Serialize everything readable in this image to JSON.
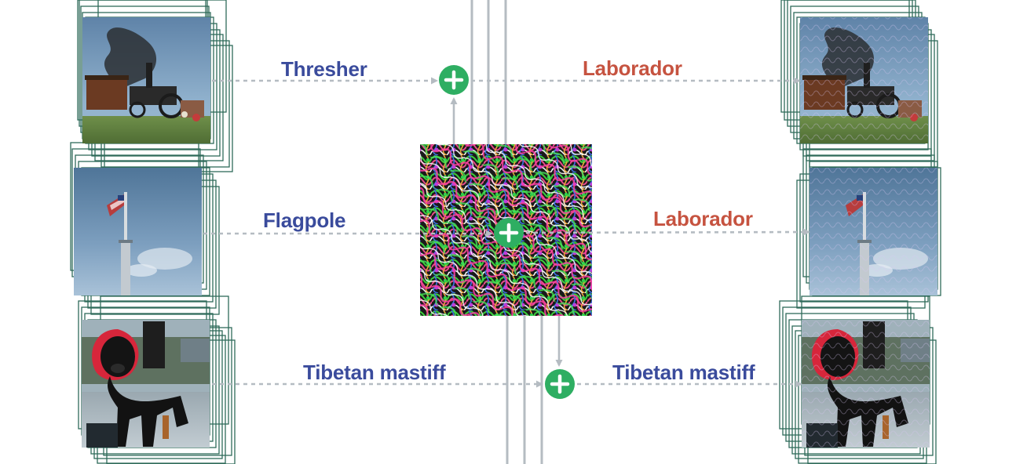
{
  "diagram": {
    "colors": {
      "frame": "#2f6b5a",
      "arrow": "#b5bcc2",
      "plus_node": "#2eae62",
      "original_label": "#3a4b9c",
      "adversarial_label": "#c65340"
    },
    "rows": [
      {
        "input_label": "Thresher",
        "output_label": "Laborador",
        "output_label_color": "red",
        "input_image": "thresher-photo",
        "output_image": "thresher-photo-perturbed"
      },
      {
        "input_label": "Flagpole",
        "output_label": "Laborador",
        "output_label_color": "red",
        "input_image": "flagpole-photo",
        "output_image": "flagpole-photo-perturbed"
      },
      {
        "input_label": "Tibetan mastiff",
        "output_label": "Tibetan mastiff",
        "output_label_color": "blue",
        "input_image": "tibetan-mastiff-photo",
        "output_image": "tibetan-mastiff-photo-perturbed"
      }
    ],
    "patch": {
      "image": "adversarial-perturbation-pattern"
    },
    "icons": {
      "plus": "plus-circle-icon",
      "arrow": "dashed-arrow-icon"
    }
  }
}
